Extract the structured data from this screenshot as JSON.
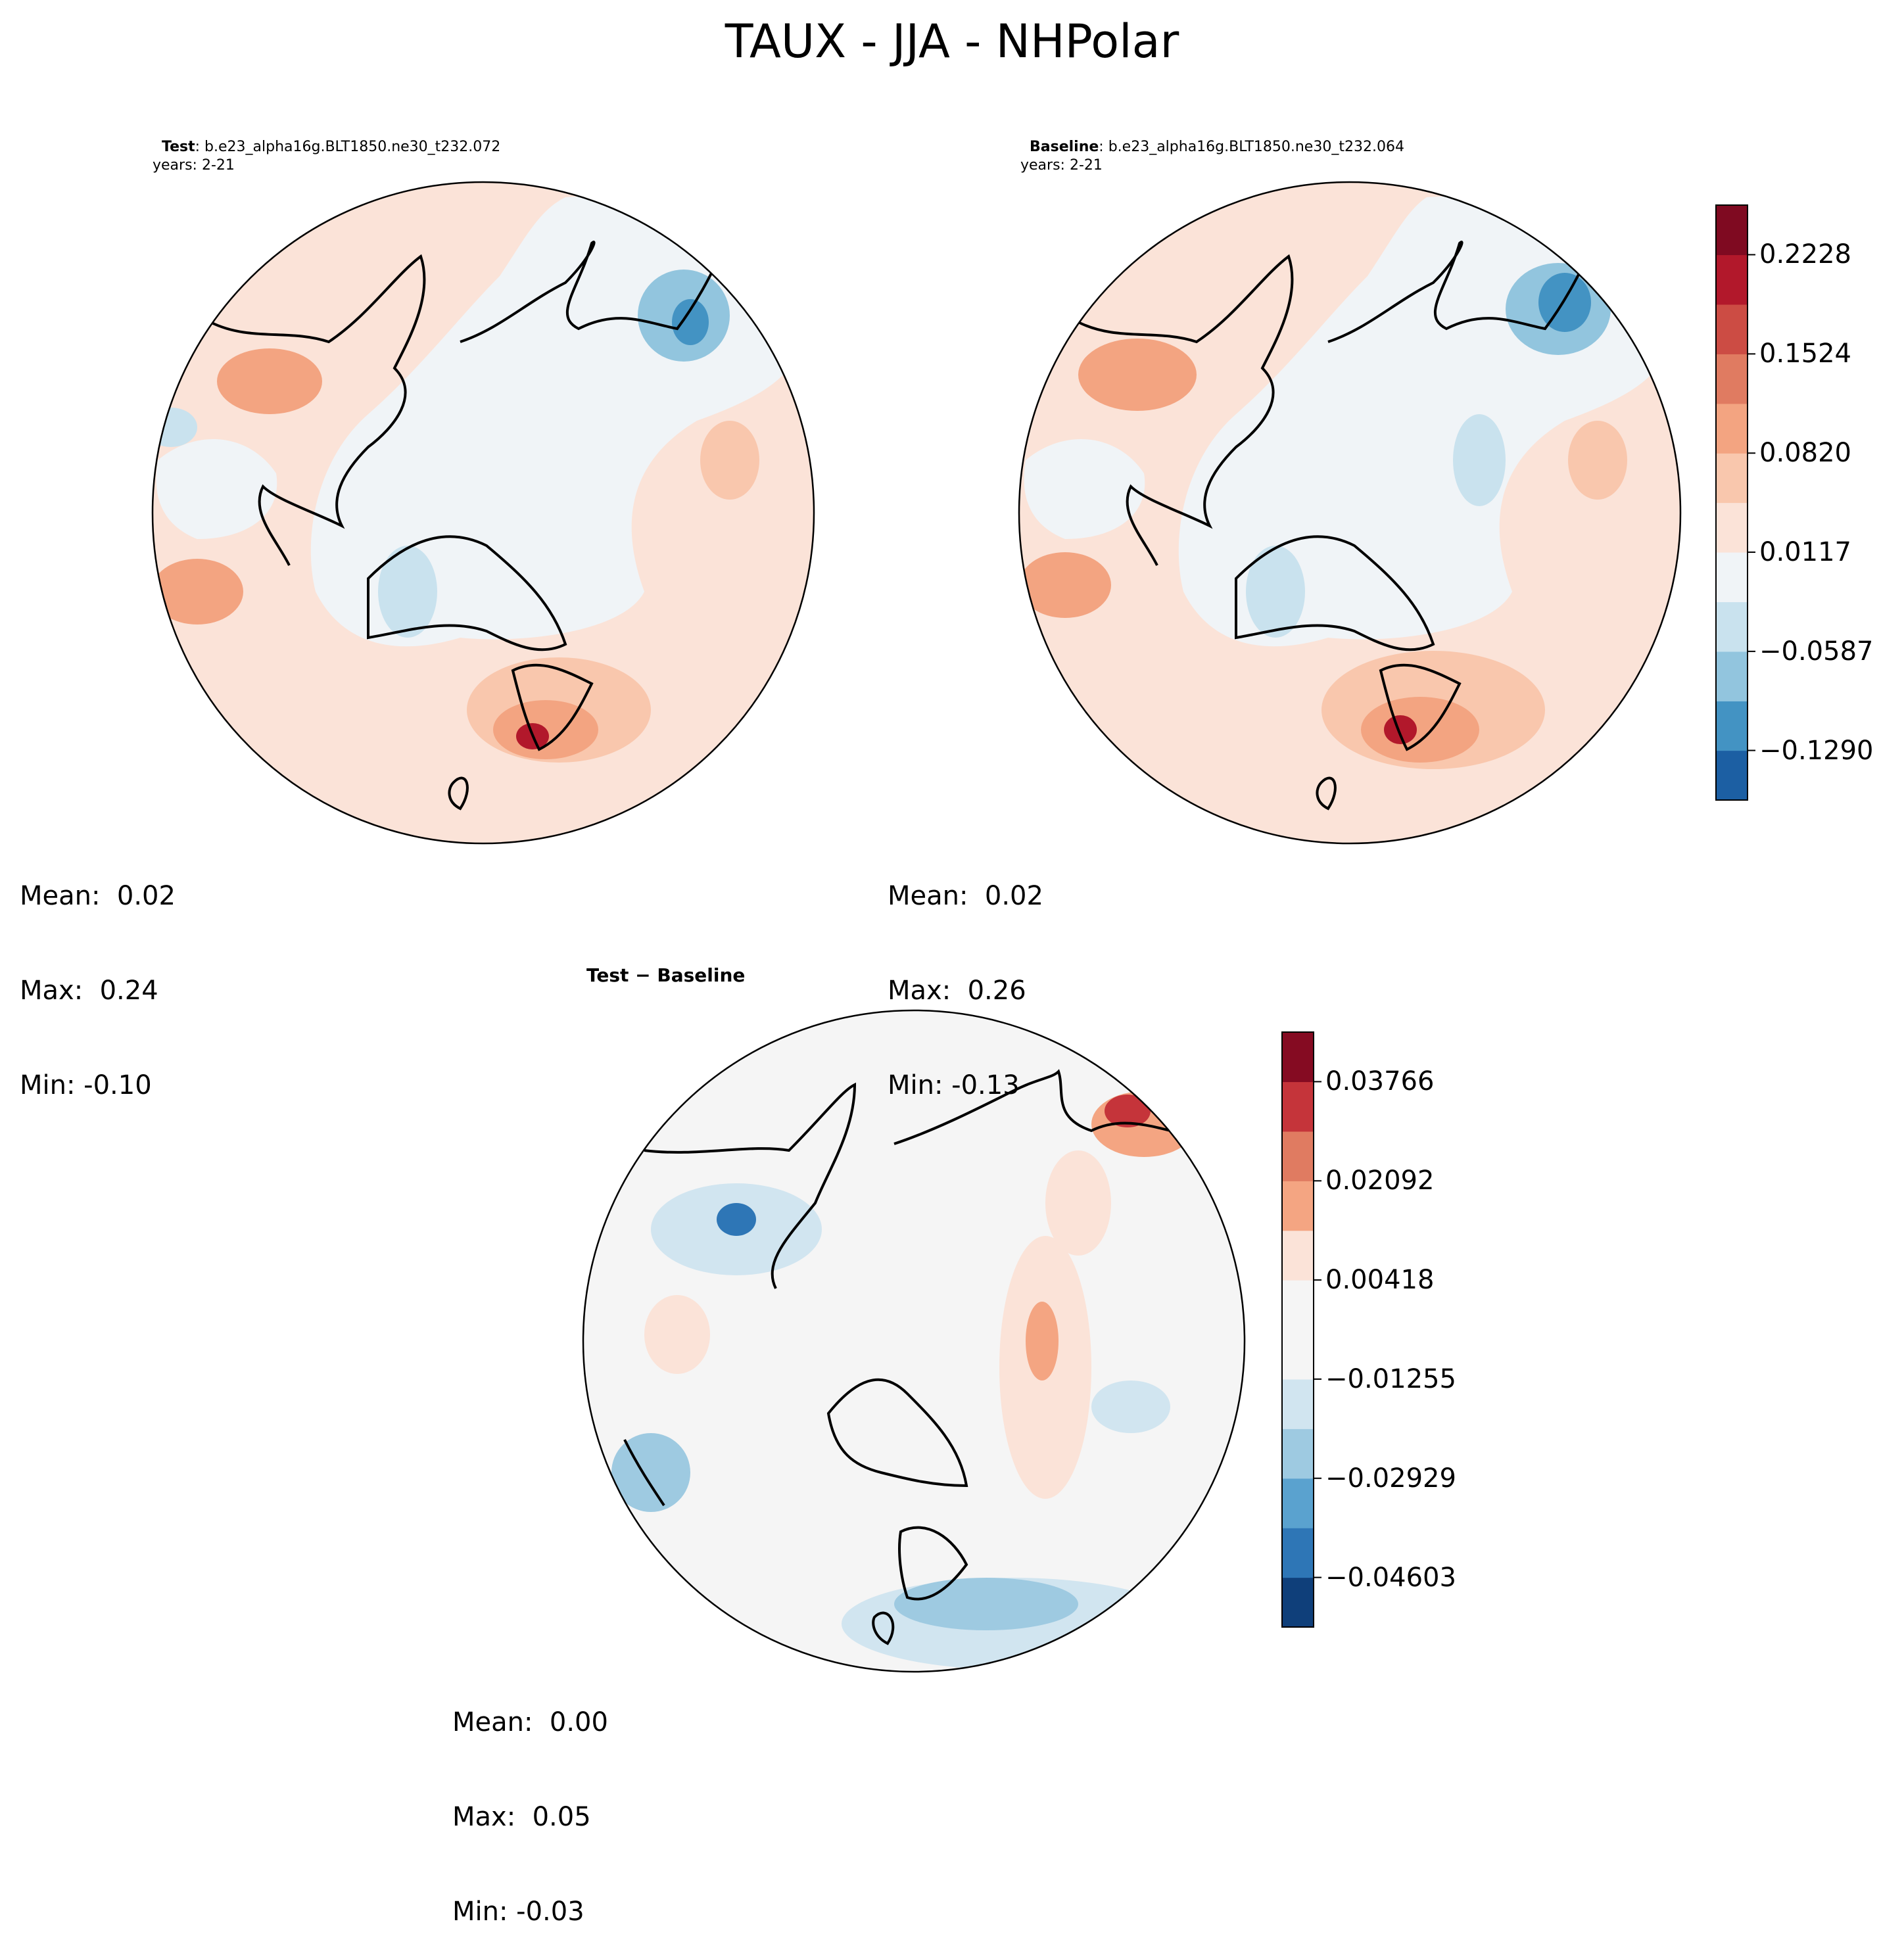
{
  "figure": {
    "suptitle": "TAUX - JJA - NHPolar"
  },
  "panels": [
    {
      "id": "test",
      "label": "Test",
      "case": ": b.e23_alpha16g.BLT1850.ne30_t232.072",
      "years": "years: 2-21",
      "stats": {
        "mean": "Mean:  0.02",
        "max": "Max:  0.24",
        "min": "Min: -0.10"
      }
    },
    {
      "id": "baseline",
      "label": "Baseline",
      "case": ": b.e23_alpha16g.BLT1850.ne30_t232.064",
      "years": "years: 2-21",
      "stats": {
        "mean": "Mean:  0.02",
        "max": "Max:  0.26",
        "min": "Min: -0.13"
      }
    },
    {
      "id": "diff",
      "label": "Test − Baseline",
      "stats": {
        "mean": "Mean:  0.00",
        "max": "Max:  0.05",
        "min": "Min: -0.03"
      }
    }
  ],
  "chart_data": [
    {
      "type": "heatmap",
      "projection": "north-polar-stereographic",
      "title": "Test : b.e23_alpha16g.BLT1850.ne30_t232.072",
      "variable": "TAUX",
      "season": "JJA",
      "mean": 0.02,
      "max": 0.24,
      "min": -0.1
    },
    {
      "type": "heatmap",
      "projection": "north-polar-stereographic",
      "title": "Baseline : b.e23_alpha16g.BLT1850.ne30_t232.064",
      "variable": "TAUX",
      "season": "JJA",
      "mean": 0.02,
      "max": 0.26,
      "min": -0.13
    },
    {
      "type": "heatmap",
      "projection": "north-polar-stereographic",
      "title": "Test − Baseline",
      "mean": 0.0,
      "max": 0.05,
      "min": -0.03
    }
  ],
  "colorbars": {
    "main": {
      "range": [
        -0.1642,
        0.258
      ],
      "boundaries": [
        -0.1642,
        -0.129,
        -0.0939,
        -0.0587,
        -0.0235,
        0.0117,
        0.0469,
        0.082,
        0.1172,
        0.1524,
        0.1876,
        0.2228,
        0.258
      ],
      "ticks": [
        -0.129,
        -0.0587,
        0.0117,
        0.082,
        0.1524,
        0.2228
      ],
      "tick_labels": [
        "−0.1290",
        "−0.0587",
        "0.0117",
        "0.0820",
        "0.1524",
        "0.2228"
      ],
      "colors": [
        "#1c5fa3",
        "#4393c3",
        "#92c5de",
        "#c9e2ee",
        "#f0f4f7",
        "#fbe3d8",
        "#f9c7ad",
        "#f3a481",
        "#e07b61",
        "#cc4c44",
        "#b2182b",
        "#7f0a21"
      ]
    },
    "diff": {
      "range": [
        -0.0544,
        0.04603
      ],
      "boundaries": [
        -0.0544,
        -0.04603,
        -0.03766,
        -0.02929,
        -0.02092,
        -0.01255,
        -0.00418,
        0.00418,
        0.01255,
        0.02092,
        0.02929,
        0.03766,
        0.04603
      ],
      "ticks": [
        -0.04603,
        -0.02929,
        -0.01255,
        0.00418,
        0.02092,
        0.03766
      ],
      "tick_labels": [
        "−0.04603",
        "−0.02929",
        "−0.01255",
        "0.00418",
        "0.02092",
        "0.03766"
      ],
      "colors": [
        "#0f3f7a",
        "#2e76b6",
        "#5aa2cf",
        "#9ecae1",
        "#d1e5f0",
        "#f5f5f5",
        "#f5f5f5",
        "#fbe3d8",
        "#f4a582",
        "#e07b61",
        "#c5343a",
        "#850b22"
      ]
    }
  }
}
